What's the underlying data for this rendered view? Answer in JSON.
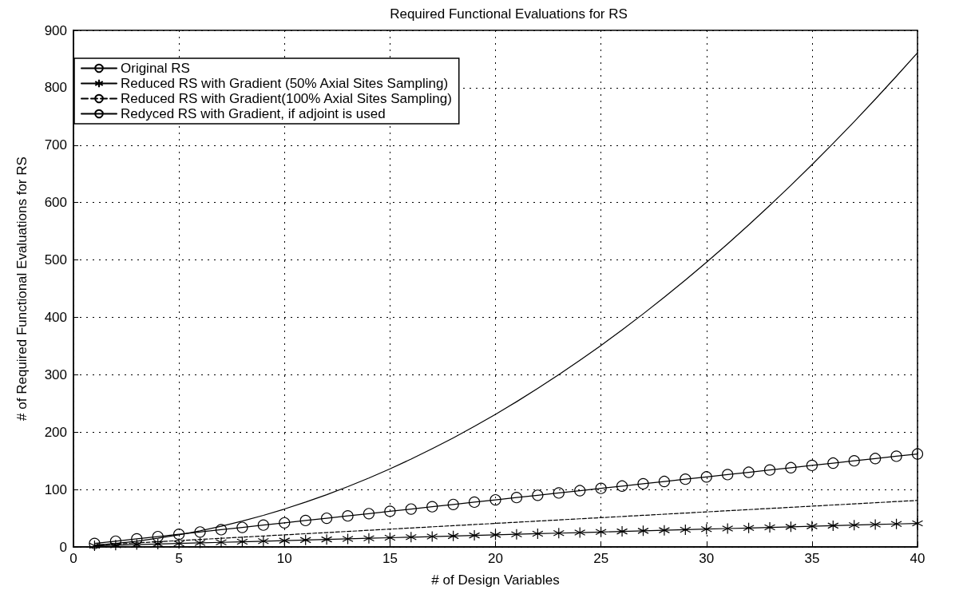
{
  "chart_data": {
    "type": "line",
    "title": "Required Functional Evaluations for RS",
    "xlabel": "# of Design Variables",
    "ylabel": "# of Required Functional Evaluations for RS",
    "x": [
      1,
      2,
      3,
      4,
      5,
      6,
      7,
      8,
      9,
      10,
      11,
      12,
      13,
      14,
      15,
      16,
      17,
      18,
      19,
      20,
      21,
      22,
      23,
      24,
      25,
      26,
      27,
      28,
      29,
      30,
      31,
      32,
      33,
      34,
      35,
      36,
      37,
      38,
      39,
      40
    ],
    "series": [
      {
        "name": "Original RS",
        "color": "#000000",
        "marker": "none",
        "line_style": "solid",
        "values": [
          3,
          6,
          10,
          15,
          21,
          28,
          36,
          45,
          55,
          66,
          78,
          91,
          105,
          120,
          136,
          153,
          171,
          190,
          210,
          231,
          253,
          276,
          300,
          325,
          351,
          378,
          406,
          435,
          465,
          496,
          528,
          561,
          595,
          630,
          666,
          703,
          741,
          780,
          820,
          861
        ]
      },
      {
        "name": "Reduced RS with Gradient (50% Axial Sites Sampling)",
        "color": "#000000",
        "marker": "cross",
        "line_style": "solid",
        "values": [
          2,
          3,
          4,
          5,
          6,
          7,
          8,
          9,
          10,
          11,
          12,
          13,
          14,
          15,
          16,
          17,
          18,
          19,
          20,
          21,
          22,
          23,
          24,
          25,
          26,
          27,
          28,
          29,
          30,
          31,
          32,
          33,
          34,
          35,
          36,
          37,
          38,
          39,
          40,
          41
        ]
      },
      {
        "name": "Reduced RS with Gradient(100% Axial Sites Sampling)",
        "color": "#000000",
        "marker": "none",
        "line_style": "dashed",
        "values": [
          3,
          5,
          7,
          9,
          11,
          13,
          15,
          17,
          19,
          21,
          23,
          25,
          27,
          29,
          31,
          33,
          35,
          37,
          39,
          41,
          43,
          45,
          47,
          49,
          51,
          53,
          55,
          57,
          59,
          61,
          63,
          65,
          67,
          69,
          71,
          73,
          75,
          77,
          79,
          81
        ]
      },
      {
        "name": "Redyced RS with Gradient, if adjoint is used",
        "color": "#000000",
        "marker": "circle",
        "line_style": "solid",
        "values": [
          6,
          10,
          14,
          18,
          22,
          26,
          30,
          34,
          38,
          42,
          46,
          50,
          54,
          58,
          62,
          66,
          70,
          74,
          78,
          82,
          86,
          90,
          94,
          98,
          102,
          106,
          110,
          114,
          118,
          122,
          126,
          130,
          134,
          138,
          142,
          146,
          150,
          154,
          158,
          162
        ]
      }
    ],
    "xlim": [
      0,
      40
    ],
    "xticks": [
      0,
      5,
      10,
      15,
      20,
      25,
      30,
      35,
      40
    ],
    "ylim": [
      0,
      900
    ],
    "yticks": [
      0,
      100,
      200,
      300,
      400,
      500,
      600,
      700,
      800,
      900
    ],
    "grid": true,
    "legend": "top left"
  }
}
